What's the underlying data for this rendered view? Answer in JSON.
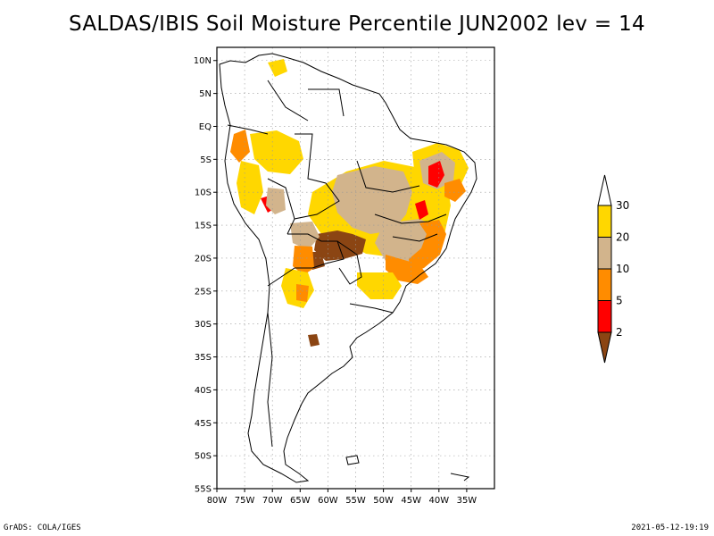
{
  "title": "SALDAS/IBIS Soil Moisture Percentile JUN2002 lev = 14",
  "map": {
    "lon_range": [
      -80,
      -30
    ],
    "lat_range": [
      -55,
      12
    ],
    "lon_ticks": [
      {
        "value": -80,
        "label": "80W"
      },
      {
        "value": -75,
        "label": "75W"
      },
      {
        "value": -70,
        "label": "70W"
      },
      {
        "value": -65,
        "label": "65W"
      },
      {
        "value": -60,
        "label": "60W"
      },
      {
        "value": -55,
        "label": "55W"
      },
      {
        "value": -50,
        "label": "50W"
      },
      {
        "value": -45,
        "label": "45W"
      },
      {
        "value": -40,
        "label": "40W"
      },
      {
        "value": -35,
        "label": "35W"
      }
    ],
    "lat_ticks": [
      {
        "value": 10,
        "label": "10N"
      },
      {
        "value": 5,
        "label": "5N"
      },
      {
        "value": 0,
        "label": "EQ"
      },
      {
        "value": -5,
        "label": "5S"
      },
      {
        "value": -10,
        "label": "10S"
      },
      {
        "value": -15,
        "label": "15S"
      },
      {
        "value": -20,
        "label": "20S"
      },
      {
        "value": -25,
        "label": "25S"
      },
      {
        "value": -30,
        "label": "30S"
      },
      {
        "value": -35,
        "label": "35S"
      },
      {
        "value": -40,
        "label": "40S"
      },
      {
        "value": -45,
        "label": "45S"
      },
      {
        "value": -50,
        "label": "50S"
      },
      {
        "value": -55,
        "label": "55S"
      }
    ],
    "grid": "dotted"
  },
  "colorbar": {
    "levels": [
      "2",
      "5",
      "10",
      "20",
      "30"
    ],
    "colors": [
      "#8B4513",
      "#FF0000",
      "#FF8C00",
      "#D2B48C",
      "#FFD700",
      "#FFFFFF"
    ]
  },
  "colors": {
    "brown": "#8B4513",
    "red": "#FF0000",
    "orange": "#FF8C00",
    "tan": "#D2B48C",
    "gold": "#FFD700"
  },
  "footer": {
    "left": "GrADS: COLA/IGES",
    "right": "2021-05-12-19:19"
  }
}
